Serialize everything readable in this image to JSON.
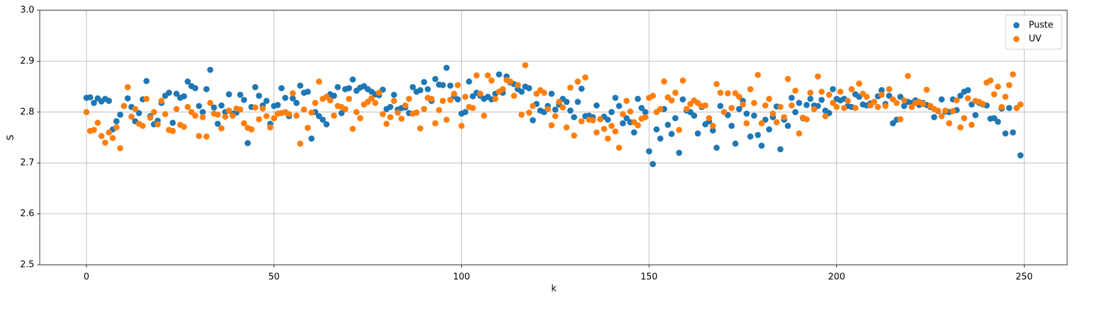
{
  "chart_data": {
    "type": "scatter",
    "x_label": "k",
    "y_label": "S",
    "xlim": [
      -12.45,
      261.45
    ],
    "xticks": [
      0,
      50,
      100,
      150,
      200,
      250
    ],
    "ylim": [
      2.5,
      3.0
    ],
    "yticks": [
      2.5,
      2.6,
      2.7,
      2.8,
      2.9,
      {
        "value": 3,
        "label": "3.0"
      }
    ],
    "grid": true,
    "legend": "upper right",
    "x": [
      0,
      1,
      2,
      3,
      4,
      5,
      6,
      7,
      8,
      9,
      10,
      11,
      12,
      13,
      14,
      15,
      16,
      17,
      18,
      19,
      20,
      21,
      22,
      23,
      24,
      25,
      26,
      27,
      28,
      29,
      30,
      31,
      32,
      33,
      34,
      35,
      36,
      37,
      38,
      39,
      40,
      41,
      42,
      43,
      44,
      45,
      46,
      47,
      48,
      49,
      50,
      51,
      52,
      53,
      54,
      55,
      56,
      57,
      58,
      59,
      60,
      61,
      62,
      63,
      64,
      65,
      66,
      67,
      68,
      69,
      70,
      71,
      72,
      73,
      74,
      75,
      76,
      77,
      78,
      79,
      80,
      81,
      82,
      83,
      84,
      85,
      86,
      87,
      88,
      89,
      90,
      91,
      92,
      93,
      94,
      95,
      96,
      97,
      98,
      99,
      100,
      101,
      102,
      103,
      104,
      105,
      106,
      107,
      108,
      109,
      110,
      111,
      112,
      113,
      114,
      115,
      116,
      117,
      118,
      119,
      120,
      121,
      122,
      123,
      124,
      125,
      126,
      127,
      128,
      129,
      130,
      131,
      132,
      133,
      134,
      135,
      136,
      137,
      138,
      139,
      140,
      141,
      142,
      143,
      144,
      145,
      146,
      147,
      148,
      149,
      150,
      151,
      152,
      153,
      154,
      155,
      156,
      157,
      158,
      159,
      160,
      161,
      162,
      163,
      164,
      165,
      166,
      167,
      168,
      169,
      170,
      171,
      172,
      173,
      174,
      175,
      176,
      177,
      178,
      179,
      180,
      181,
      182,
      183,
      184,
      185,
      186,
      187,
      188,
      189,
      190,
      191,
      192,
      193,
      194,
      195,
      196,
      197,
      198,
      199,
      200,
      201,
      202,
      203,
      204,
      205,
      206,
      207,
      208,
      209,
      210,
      211,
      212,
      213,
      214,
      215,
      216,
      217,
      218,
      219,
      220,
      221,
      222,
      223,
      224,
      225,
      226,
      227,
      228,
      229,
      230,
      231,
      232,
      233,
      234,
      235,
      236,
      237,
      238,
      239,
      240,
      241,
      242,
      243,
      244,
      245,
      246,
      247,
      248,
      249
    ],
    "series": [
      {
        "name": "Puste",
        "color": "#1f77b4",
        "values": [
          2.828,
          2.829,
          2.818,
          2.827,
          2.821,
          2.826,
          2.822,
          2.766,
          2.782,
          2.795,
          2.812,
          2.827,
          2.81,
          2.782,
          2.798,
          2.825,
          2.861,
          2.792,
          2.776,
          2.783,
          2.818,
          2.832,
          2.838,
          2.779,
          2.836,
          2.828,
          2.831,
          2.86,
          2.851,
          2.847,
          2.812,
          2.8,
          2.845,
          2.883,
          2.809,
          2.777,
          2.813,
          2.8,
          2.835,
          2.797,
          2.799,
          2.834,
          2.824,
          2.739,
          2.81,
          2.849,
          2.832,
          2.813,
          2.822,
          2.777,
          2.812,
          2.814,
          2.847,
          2.828,
          2.792,
          2.827,
          2.818,
          2.852,
          2.838,
          2.84,
          2.748,
          2.8,
          2.792,
          2.785,
          2.776,
          2.835,
          2.832,
          2.849,
          2.798,
          2.845,
          2.847,
          2.864,
          2.842,
          2.848,
          2.851,
          2.845,
          2.84,
          2.835,
          2.833,
          2.844,
          2.806,
          2.81,
          2.834,
          2.805,
          2.808,
          2.809,
          2.798,
          2.849,
          2.84,
          2.843,
          2.859,
          2.845,
          2.822,
          2.865,
          2.854,
          2.853,
          2.887,
          2.852,
          2.831,
          2.825,
          2.797,
          2.8,
          2.86,
          2.831,
          2.838,
          2.832,
          2.826,
          2.83,
          2.825,
          2.836,
          2.874,
          2.838,
          2.87,
          2.858,
          2.855,
          2.845,
          2.84,
          2.85,
          2.847,
          2.784,
          2.816,
          2.803,
          2.8,
          2.812,
          2.836,
          2.805,
          2.815,
          2.826,
          2.82,
          2.803,
          2.79,
          2.82,
          2.846,
          2.792,
          2.793,
          2.79,
          2.813,
          2.786,
          2.791,
          2.785,
          2.8,
          2.828,
          2.812,
          2.778,
          2.788,
          2.78,
          2.76,
          2.826,
          2.808,
          2.8,
          2.723,
          2.698,
          2.766,
          2.748,
          2.806,
          2.775,
          2.757,
          2.788,
          2.72,
          2.825,
          2.803,
          2.8,
          2.793,
          2.758,
          2.81,
          2.776,
          2.782,
          2.764,
          2.73,
          2.812,
          2.8,
          2.794,
          2.773,
          2.738,
          2.806,
          2.822,
          2.797,
          2.752,
          2.793,
          2.755,
          2.734,
          2.785,
          2.766,
          2.79,
          2.811,
          2.727,
          2.785,
          2.773,
          2.828,
          2.8,
          2.818,
          2.788,
          2.814,
          2.826,
          2.813,
          2.812,
          2.824,
          2.803,
          2.798,
          2.845,
          2.826,
          2.823,
          2.826,
          2.812,
          2.81,
          2.835,
          2.83,
          2.815,
          2.813,
          2.817,
          2.82,
          2.831,
          2.843,
          2.816,
          2.832,
          2.778,
          2.785,
          2.83,
          2.812,
          2.82,
          2.818,
          2.823,
          2.814,
          2.818,
          2.814,
          2.81,
          2.79,
          2.802,
          2.825,
          2.801,
          2.8,
          2.825,
          2.804,
          2.832,
          2.84,
          2.843,
          2.815,
          2.794,
          2.818,
          2.815,
          2.813,
          2.787,
          2.788,
          2.781,
          2.807,
          2.758,
          2.808,
          2.76,
          2.808,
          2.715
        ]
      },
      {
        "name": "UV",
        "color": "#ff7f0e",
        "values": [
          2.8,
          2.763,
          2.765,
          2.779,
          2.753,
          2.74,
          2.76,
          2.749,
          2.77,
          2.729,
          2.812,
          2.849,
          2.791,
          2.806,
          2.777,
          2.773,
          2.826,
          2.789,
          2.8,
          2.776,
          2.822,
          2.796,
          2.765,
          2.763,
          2.806,
          2.775,
          2.771,
          2.81,
          2.8,
          2.793,
          2.753,
          2.79,
          2.752,
          2.818,
          2.797,
          2.795,
          2.768,
          2.791,
          2.803,
          2.793,
          2.807,
          2.805,
          2.778,
          2.769,
          2.766,
          2.809,
          2.786,
          2.807,
          2.792,
          2.77,
          2.788,
          2.797,
          2.798,
          2.8,
          2.796,
          2.837,
          2.793,
          2.738,
          2.805,
          2.769,
          2.799,
          2.818,
          2.86,
          2.826,
          2.83,
          2.823,
          2.793,
          2.812,
          2.81,
          2.806,
          2.826,
          2.767,
          2.8,
          2.788,
          2.815,
          2.82,
          2.827,
          2.818,
          2.838,
          2.796,
          2.777,
          2.79,
          2.822,
          2.799,
          2.787,
          2.813,
          2.826,
          2.797,
          2.799,
          2.768,
          2.806,
          2.828,
          2.826,
          2.778,
          2.804,
          2.822,
          2.785,
          2.824,
          2.836,
          2.853,
          2.773,
          2.83,
          2.81,
          2.808,
          2.872,
          2.836,
          2.793,
          2.872,
          2.862,
          2.826,
          2.84,
          2.845,
          2.863,
          2.86,
          2.832,
          2.853,
          2.795,
          2.892,
          2.799,
          2.812,
          2.836,
          2.843,
          2.838,
          2.806,
          2.774,
          2.792,
          2.82,
          2.809,
          2.77,
          2.848,
          2.754,
          2.86,
          2.782,
          2.868,
          2.785,
          2.784,
          2.76,
          2.786,
          2.767,
          2.748,
          2.773,
          2.762,
          2.73,
          2.796,
          2.822,
          2.801,
          2.78,
          2.774,
          2.787,
          2.79,
          2.828,
          2.832,
          2.8,
          2.806,
          2.86,
          2.829,
          2.823,
          2.838,
          2.765,
          2.862,
          2.806,
          2.816,
          2.823,
          2.818,
          2.812,
          2.813,
          2.788,
          2.773,
          2.855,
          2.838,
          2.8,
          2.837,
          2.808,
          2.837,
          2.83,
          2.815,
          2.778,
          2.845,
          2.818,
          2.873,
          2.778,
          2.813,
          2.826,
          2.797,
          2.78,
          2.81,
          2.79,
          2.865,
          2.813,
          2.842,
          2.758,
          2.789,
          2.786,
          2.838,
          2.806,
          2.87,
          2.84,
          2.792,
          2.834,
          2.818,
          2.81,
          2.84,
          2.808,
          2.822,
          2.845,
          2.808,
          2.856,
          2.836,
          2.83,
          2.813,
          2.82,
          2.81,
          2.834,
          2.812,
          2.845,
          2.825,
          2.818,
          2.786,
          2.823,
          2.871,
          2.81,
          2.818,
          2.82,
          2.816,
          2.844,
          2.812,
          2.806,
          2.803,
          2.792,
          2.803,
          2.778,
          2.802,
          2.823,
          2.77,
          2.788,
          2.827,
          2.775,
          2.822,
          2.82,
          2.816,
          2.858,
          2.862,
          2.835,
          2.85,
          2.81,
          2.83,
          2.853,
          2.874,
          2.808,
          2.815
        ]
      }
    ]
  }
}
